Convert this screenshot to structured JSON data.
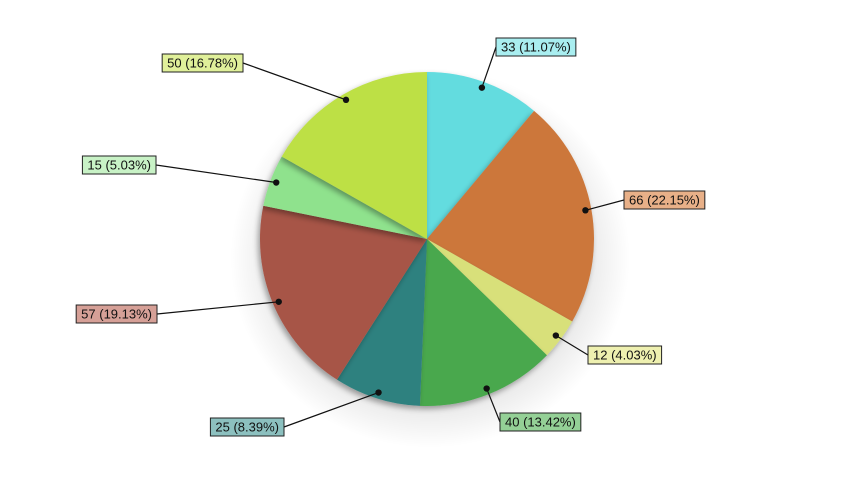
{
  "chart_data": {
    "type": "pie",
    "start_angle_deg": 0,
    "direction": "clockwise",
    "slices": [
      {
        "value": 33,
        "label": "33 (11.07%)",
        "color": "#63dcdf",
        "box_color": "#a9eef0"
      },
      {
        "value": 66,
        "label": "66 (22.15%)",
        "color": "#cc773a",
        "box_color": "#e8b088"
      },
      {
        "value": 12,
        "label": "12 (4.03%)",
        "color": "#d8e07a",
        "box_color": "#eef0b0"
      },
      {
        "value": 40,
        "label": "40 (13.42%)",
        "color": "#48a84e",
        "box_color": "#94d096"
      },
      {
        "value": 25,
        "label": "25 (8.39%)",
        "color": "#2e817f",
        "box_color": "#8cc0bf"
      },
      {
        "value": 57,
        "label": "57 (19.13%)",
        "color": "#a75446",
        "box_color": "#d6a097"
      },
      {
        "value": 15,
        "label": "15 (5.03%)",
        "color": "#8fe28d",
        "box_color": "#c8f2c6"
      },
      {
        "value": 50,
        "label": "50 (16.78%)",
        "color": "#bde045",
        "box_color": "#e0f09a"
      }
    ]
  }
}
